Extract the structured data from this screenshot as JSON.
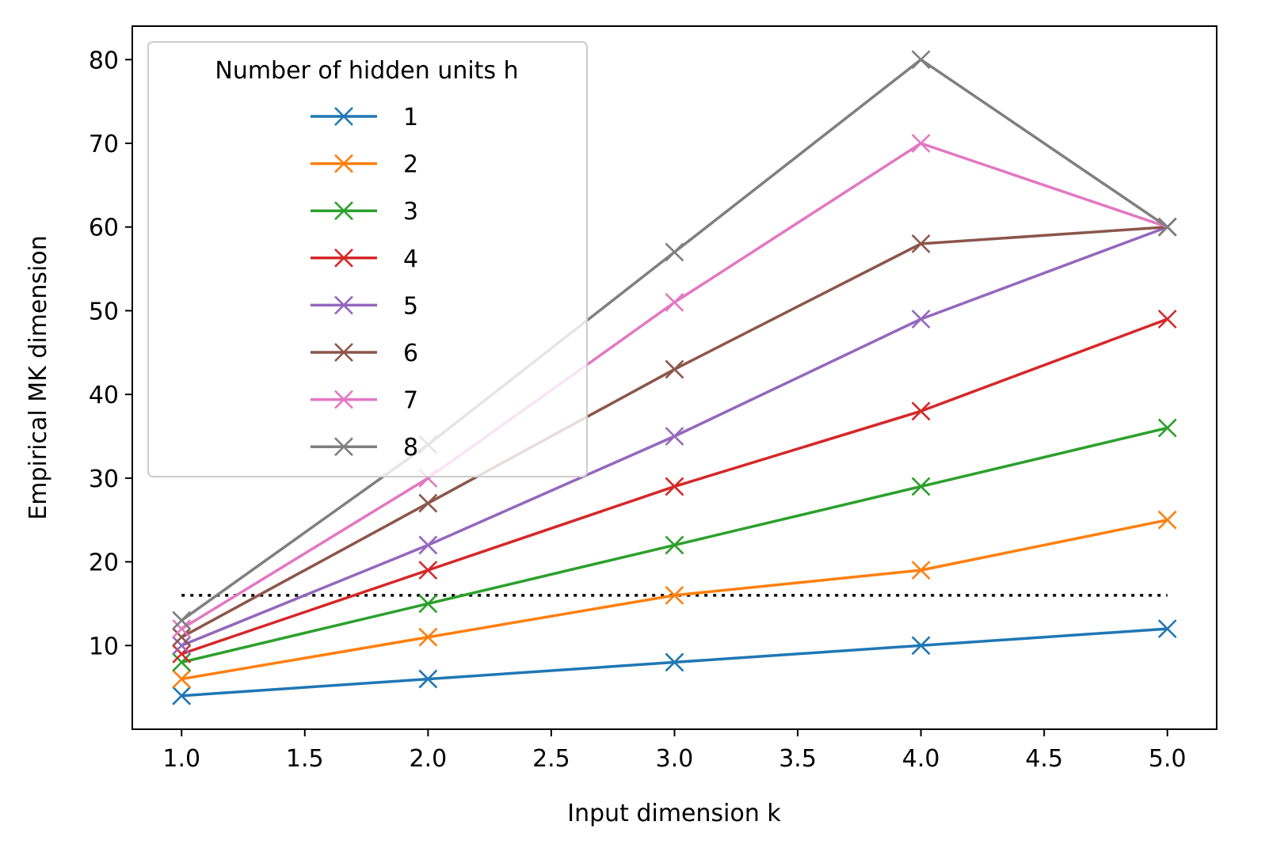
{
  "chart_data": {
    "type": "line",
    "title": "",
    "xlabel": "Input dimension k",
    "ylabel": "Empirical MK dimension",
    "xlim": [
      0.8,
      5.2
    ],
    "ylim": [
      0,
      84
    ],
    "x": [
      1,
      2,
      3,
      4,
      5
    ],
    "xticks": [
      1.0,
      1.5,
      2.0,
      2.5,
      3.0,
      3.5,
      4.0,
      4.5,
      5.0
    ],
    "xtick_labels": [
      "1.0",
      "1.5",
      "2.0",
      "2.5",
      "3.0",
      "3.5",
      "4.0",
      "4.5",
      "5.0"
    ],
    "yticks": [
      10,
      20,
      30,
      40,
      50,
      60,
      70,
      80
    ],
    "ytick_labels": [
      "10",
      "20",
      "30",
      "40",
      "50",
      "60",
      "70",
      "80"
    ],
    "grid": false,
    "marker": "x",
    "legend": {
      "title": "Number of hidden units h",
      "position": "upper-left"
    },
    "series": [
      {
        "name": "1",
        "color": "#1f77b4",
        "values": [
          4,
          6,
          8,
          10,
          12
        ]
      },
      {
        "name": "2",
        "color": "#ff7f0e",
        "values": [
          6,
          11,
          16,
          19,
          25
        ]
      },
      {
        "name": "3",
        "color": "#2ca02c",
        "values": [
          8,
          15,
          22,
          29,
          36
        ]
      },
      {
        "name": "4",
        "color": "#d62728",
        "values": [
          9,
          19,
          29,
          38,
          49
        ]
      },
      {
        "name": "5",
        "color": "#9467bd",
        "values": [
          10,
          22,
          35,
          49,
          60
        ]
      },
      {
        "name": "6",
        "color": "#8c564b",
        "values": [
          11,
          27,
          43,
          58,
          60
        ]
      },
      {
        "name": "7",
        "color": "#e377c2",
        "values": [
          12,
          30,
          51,
          70,
          60
        ]
      },
      {
        "name": "8",
        "color": "#7f7f7f",
        "values": [
          13,
          34,
          57,
          80,
          60
        ]
      }
    ],
    "reference_line": {
      "y": 16,
      "x_range": [
        1,
        5
      ],
      "style": "dotted",
      "color": "#000000"
    }
  }
}
